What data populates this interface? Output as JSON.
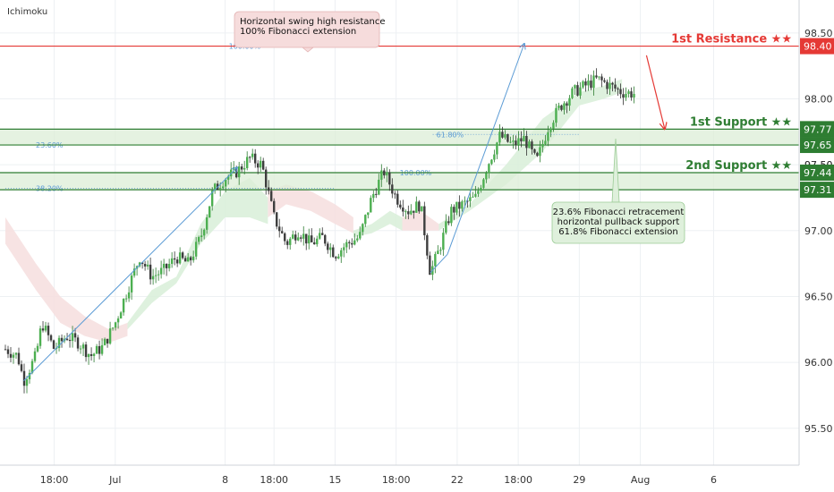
{
  "indicator_label": "Ichimoku",
  "colors": {
    "up": "#4caf50",
    "down": "#3d3d3d",
    "resistance": "#e53935",
    "support": "#2e7d32",
    "support_fill": "#dcedd7",
    "fib": "#5b9bd5",
    "cloud_green": "#d8eed8",
    "cloud_red": "#f6dede",
    "grid": "#edf0f3",
    "axis_text": "#333333"
  },
  "chart_data": {
    "type": "candlestick",
    "title": "",
    "ylim": [
      95.22,
      98.75
    ],
    "y_ticks": [
      {
        "value": 95.5,
        "label": "95.50"
      },
      {
        "value": 96.0,
        "label": "96.00"
      },
      {
        "value": 96.5,
        "label": "96.50"
      },
      {
        "value": 97.0,
        "label": "97.00"
      },
      {
        "value": 97.5,
        "label": "97.50"
      },
      {
        "value": 98.0,
        "label": "98.00"
      },
      {
        "value": 98.5,
        "label": "98.50"
      }
    ],
    "x_ticks": [
      {
        "label": "18:00",
        "t": 4
      },
      {
        "label": "Jul",
        "t": 9
      },
      {
        "label": "8",
        "t": 18
      },
      {
        "label": "18:00",
        "t": 22
      },
      {
        "label": "15",
        "t": 27
      },
      {
        "label": "18:00",
        "t": 32
      },
      {
        "label": "22",
        "t": 37
      },
      {
        "label": "18:00",
        "t": 42
      },
      {
        "label": "29",
        "t": 47
      },
      {
        "label": "Aug",
        "t": 52
      },
      {
        "label": "6",
        "t": 58
      }
    ],
    "t_range": [
      0,
      65
    ],
    "price_path": [
      [
        0,
        96.1
      ],
      [
        1,
        96.05
      ],
      [
        1.5,
        95.86
      ],
      [
        2.5,
        96.05
      ],
      [
        3,
        96.3
      ],
      [
        4,
        96.1
      ],
      [
        5,
        96.2
      ],
      [
        6,
        96.15
      ],
      [
        7,
        96.05
      ],
      [
        8,
        96.12
      ],
      [
        9,
        96.3
      ],
      [
        10,
        96.55
      ],
      [
        11,
        96.8
      ],
      [
        12,
        96.65
      ],
      [
        13,
        96.7
      ],
      [
        14,
        96.8
      ],
      [
        15,
        96.75
      ],
      [
        16,
        96.95
      ],
      [
        17,
        97.3
      ],
      [
        18,
        97.4
      ],
      [
        19,
        97.45
      ],
      [
        20,
        97.55
      ],
      [
        21,
        97.5
      ],
      [
        22,
        97.1
      ],
      [
        23,
        96.9
      ],
      [
        24,
        97.0
      ],
      [
        25,
        96.9
      ],
      [
        26,
        96.95
      ],
      [
        27,
        96.82
      ],
      [
        28,
        96.9
      ],
      [
        29,
        96.95
      ],
      [
        30,
        97.25
      ],
      [
        31,
        97.45
      ],
      [
        32,
        97.25
      ],
      [
        33,
        97.15
      ],
      [
        34,
        97.2
      ],
      [
        34.8,
        96.68
      ],
      [
        35.5,
        96.85
      ],
      [
        36.5,
        97.15
      ],
      [
        37.5,
        97.2
      ],
      [
        38.5,
        97.25
      ],
      [
        39.5,
        97.5
      ],
      [
        40.5,
        97.72
      ],
      [
        41.5,
        97.65
      ],
      [
        42.5,
        97.7
      ],
      [
        43.5,
        97.52
      ],
      [
        44.5,
        97.8
      ],
      [
        45.5,
        97.95
      ],
      [
        46.5,
        98.05
      ],
      [
        47.5,
        98.1
      ],
      [
        48.5,
        98.15
      ],
      [
        49.5,
        98.1
      ],
      [
        50.5,
        98.05
      ],
      [
        51.5,
        98.04
      ]
    ],
    "cloud_bands": [
      {
        "color": "red",
        "points": [
          [
            0,
            96.9,
            97.1
          ],
          [
            2.5,
            96.55,
            96.75
          ],
          [
            4.5,
            96.3,
            96.5
          ],
          [
            6.5,
            96.2,
            96.35
          ],
          [
            8.5,
            96.15,
            96.25
          ],
          [
            10,
            96.2,
            96.3
          ]
        ]
      },
      {
        "color": "green",
        "points": [
          [
            10,
            96.25,
            96.3
          ],
          [
            12,
            96.45,
            96.55
          ],
          [
            14,
            96.6,
            96.65
          ],
          [
            16,
            96.9,
            97.05
          ],
          [
            18,
            97.1,
            97.3
          ],
          [
            20,
            97.1,
            97.4
          ],
          [
            21.5,
            97.05,
            97.25
          ]
        ]
      },
      {
        "color": "red",
        "points": [
          [
            21.5,
            97.1,
            97.3
          ],
          [
            23,
            97.2,
            97.35
          ],
          [
            25,
            97.15,
            97.3
          ],
          [
            27,
            97.05,
            97.2
          ],
          [
            28.5,
            96.98,
            97.1
          ]
        ]
      },
      {
        "color": "green",
        "points": [
          [
            28.5,
            96.95,
            97.0
          ],
          [
            30,
            96.98,
            97.05
          ],
          [
            31.5,
            97.05,
            97.15
          ],
          [
            32.5,
            97.0,
            97.1
          ]
        ]
      },
      {
        "color": "red",
        "points": [
          [
            32.5,
            97.0,
            97.1
          ],
          [
            34,
            97.0,
            97.15
          ],
          [
            35.5,
            97.0,
            97.05
          ]
        ]
      },
      {
        "color": "green",
        "points": [
          [
            35.5,
            97.0,
            97.05
          ],
          [
            38,
            97.15,
            97.2
          ],
          [
            41,
            97.35,
            97.5
          ],
          [
            44,
            97.6,
            97.85
          ],
          [
            47,
            97.95,
            98.05
          ],
          [
            49,
            98.0,
            98.1
          ],
          [
            50.5,
            98.05,
            98.15
          ]
        ]
      }
    ],
    "levels": [
      {
        "name": "1st Resistance ★★",
        "value": 98.4,
        "label": "98.40",
        "kind": "resistance"
      },
      {
        "name": "1st Support ★★",
        "value": 97.77,
        "label": "97.77",
        "kind": "support"
      },
      {
        "name": "",
        "value": 97.65,
        "label": "97.65",
        "kind": "support"
      },
      {
        "name": "2nd Support ★★",
        "value": 97.44,
        "label": "97.44",
        "kind": "support"
      },
      {
        "name": "",
        "value": 97.31,
        "label": "97.31",
        "kind": "support"
      }
    ],
    "fib_lines": [
      {
        "label": "100.00%",
        "value": 98.4,
        "t_start": 18,
        "t_end": 27
      },
      {
        "label": "23.60%",
        "value": 97.65,
        "t_start": 0,
        "t_end": 33
      },
      {
        "label": "38.20%",
        "value": 97.32,
        "t_start": 0,
        "t_end": 27
      },
      {
        "label": "61.80%",
        "value": 97.73,
        "t_start": 35,
        "t_end": 47
      },
      {
        "label": "100.00%",
        "value": 97.44,
        "t_start": 32,
        "t_end": 47
      }
    ],
    "trend_arrows": [
      {
        "from": [
          1.5,
          95.86
        ],
        "to": [
          19,
          97.48
        ]
      },
      {
        "from": [
          34.8,
          96.68
        ],
        "to": [
          36.2,
          96.82
        ]
      },
      {
        "from": [
          36.2,
          96.82
        ],
        "to": [
          42.5,
          98.42
        ]
      }
    ],
    "forecast_arrow": {
      "from": [
        52.5,
        98.33
      ],
      "to": [
        54,
        97.77
      ]
    },
    "annotations": [
      {
        "lines": [
          "Horizontal swing high resistance",
          "100% Fibonacci extension"
        ],
        "theme": "red"
      },
      {
        "lines": [
          "23.6% Fibonacci retracement",
          "horizontal pullback support",
          "61.8% Fibonacci extension"
        ],
        "theme": "green"
      }
    ],
    "axis_price_labels": [
      {
        "value": 97.5,
        "label": "97.50"
      }
    ]
  }
}
